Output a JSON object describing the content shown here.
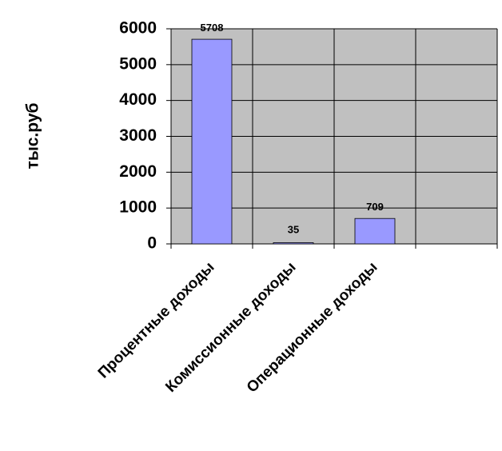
{
  "chart_data": {
    "type": "bar",
    "y_label": "тыс.руб",
    "categories": [
      "Процентные доходы",
      "Комиссионные доходы",
      "Операционные доходы",
      null
    ],
    "values": [
      5708,
      35,
      709,
      null
    ],
    "color": "#9999ff",
    "ylim": [
      0,
      6000
    ],
    "yticks": [
      0,
      1000,
      2000,
      3000,
      4000,
      5000,
      6000
    ],
    "grid": true,
    "plot_background": "#c0c0c0"
  }
}
